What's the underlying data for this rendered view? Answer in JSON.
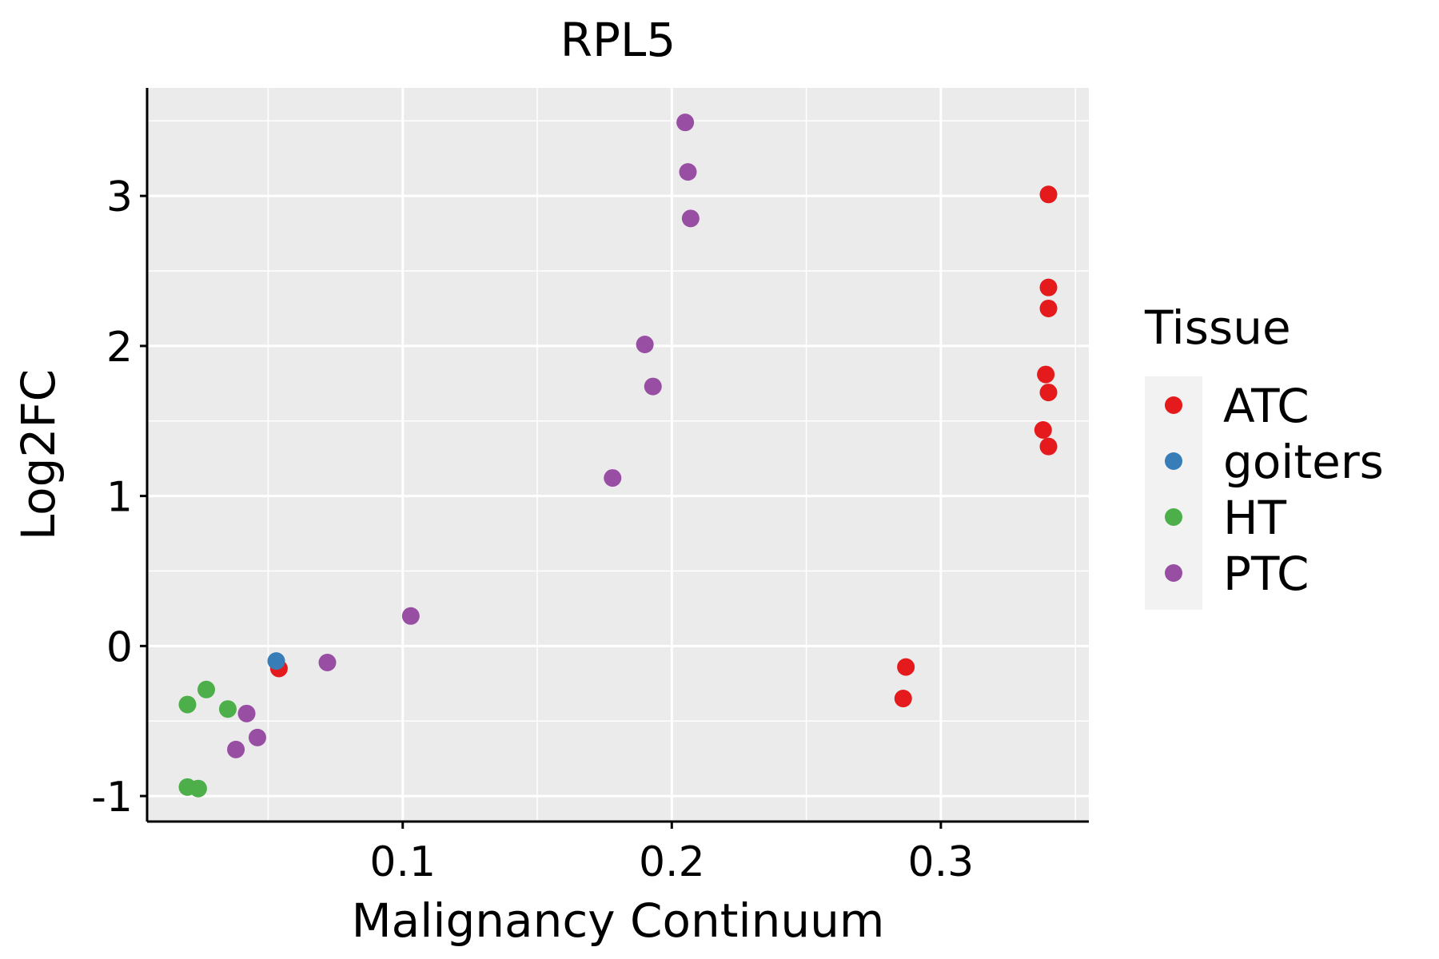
{
  "chart_data": {
    "type": "scatter",
    "title": "RPL5",
    "xlabel": "Malignancy Continuum",
    "ylabel": "Log2FC",
    "xlim": [
      0.005,
      0.355
    ],
    "ylim": [
      -1.17,
      3.72
    ],
    "x_ticks": [
      0.1,
      0.2,
      0.3
    ],
    "x_tick_labels": [
      "0.1",
      "0.2",
      "0.3"
    ],
    "y_ticks": [
      -1,
      0,
      1,
      2,
      3
    ],
    "y_tick_labels": [
      "-1",
      "0",
      "1",
      "2",
      "3"
    ],
    "grid": true,
    "legend": {
      "title": "Tissue",
      "position": "right",
      "entries": [
        "ATC",
        "goiters",
        "HT",
        "PTC"
      ]
    },
    "colors": {
      "ATC": "#E41A1C",
      "goiters": "#377EB8",
      "HT": "#4DAF4A",
      "PTC": "#984EA3"
    },
    "series": [
      {
        "name": "ATC",
        "points": [
          {
            "x": 0.054,
            "y": -0.15
          },
          {
            "x": 0.287,
            "y": -0.14
          },
          {
            "x": 0.286,
            "y": -0.35
          },
          {
            "x": 0.34,
            "y": 3.01
          },
          {
            "x": 0.34,
            "y": 2.39
          },
          {
            "x": 0.34,
            "y": 2.25
          },
          {
            "x": 0.339,
            "y": 1.81
          },
          {
            "x": 0.34,
            "y": 1.69
          },
          {
            "x": 0.338,
            "y": 1.44
          },
          {
            "x": 0.34,
            "y": 1.33
          }
        ]
      },
      {
        "name": "goiters",
        "points": [
          {
            "x": 0.053,
            "y": -0.1
          }
        ]
      },
      {
        "name": "HT",
        "points": [
          {
            "x": 0.02,
            "y": -0.39
          },
          {
            "x": 0.027,
            "y": -0.29
          },
          {
            "x": 0.035,
            "y": -0.42
          },
          {
            "x": 0.02,
            "y": -0.94
          },
          {
            "x": 0.024,
            "y": -0.95
          }
        ]
      },
      {
        "name": "PTC",
        "points": [
          {
            "x": 0.072,
            "y": -0.11
          },
          {
            "x": 0.042,
            "y": -0.45
          },
          {
            "x": 0.046,
            "y": -0.61
          },
          {
            "x": 0.038,
            "y": -0.69
          },
          {
            "x": 0.103,
            "y": 0.2
          },
          {
            "x": 0.178,
            "y": 1.12
          },
          {
            "x": 0.19,
            "y": 2.01
          },
          {
            "x": 0.193,
            "y": 1.73
          },
          {
            "x": 0.205,
            "y": 3.49
          },
          {
            "x": 0.206,
            "y": 3.16
          },
          {
            "x": 0.207,
            "y": 2.85
          }
        ]
      }
    ]
  }
}
